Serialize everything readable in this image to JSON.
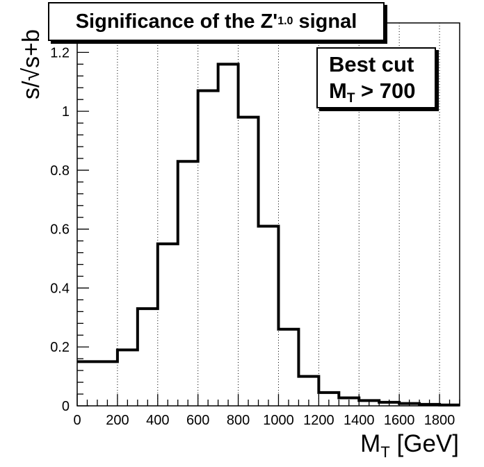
{
  "chart_data": {
    "type": "bar",
    "style": "step-histogram",
    "title": {
      "text": "Significance of the Z'",
      "subscript": "1.0",
      "suffix": "signal"
    },
    "annotation": {
      "line1": "Best cut",
      "line2_main": "M",
      "line2_sub": "T",
      "line2_rest": " > 700"
    },
    "xlabel": {
      "main": "M",
      "sub": "T",
      "rest": " [GeV]"
    },
    "ylabel": "s/√s+b",
    "xlim": [
      0,
      1900
    ],
    "ylim": [
      0,
      1.3
    ],
    "bin_edges": [
      0,
      100,
      200,
      300,
      400,
      500,
      600,
      700,
      800,
      900,
      1000,
      1100,
      1200,
      1300,
      1400,
      1500,
      1600,
      1700,
      1800,
      1900
    ],
    "values": [
      0.15,
      0.15,
      0.19,
      0.33,
      0.55,
      0.83,
      1.07,
      1.16,
      0.98,
      0.61,
      0.26,
      0.1,
      0.045,
      0.027,
      0.018,
      0.012,
      0.008,
      0.005,
      0.003
    ],
    "x_ticks": [
      0,
      200,
      400,
      600,
      800,
      1000,
      1200,
      1400,
      1600,
      1800
    ],
    "x_tick_labels": [
      "0",
      "200",
      "400",
      "600",
      "800",
      "1000",
      "1200",
      "1400",
      "1600",
      "1800"
    ],
    "y_ticks": [
      0,
      0.2,
      0.4,
      0.6,
      0.8,
      1,
      1.2
    ],
    "y_tick_labels": [
      "0",
      "0.2",
      "0.4",
      "0.6",
      "0.8",
      "1",
      "1.2"
    ],
    "grid": "vertical dotted",
    "line_color": "#000000"
  }
}
